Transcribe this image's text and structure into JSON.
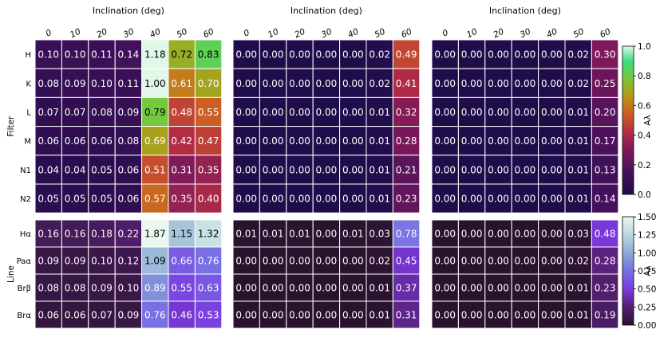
{
  "chart_data": [
    {
      "type": "heatmap",
      "panel": "top-left",
      "xlabel": "Inclination (deg)",
      "ylabel": "Filter",
      "x": [
        "0",
        "10",
        "20",
        "30",
        "40",
        "50",
        "60"
      ],
      "y": [
        "H",
        "K",
        "L",
        "M",
        "N1",
        "N2"
      ],
      "values": [
        [
          0.1,
          0.1,
          0.11,
          0.14,
          1.18,
          0.72,
          0.83
        ],
        [
          0.08,
          0.09,
          0.1,
          0.11,
          1.0,
          0.61,
          0.7
        ],
        [
          0.07,
          0.07,
          0.08,
          0.09,
          0.79,
          0.48,
          0.55
        ],
        [
          0.06,
          0.06,
          0.06,
          0.08,
          0.69,
          0.42,
          0.47
        ],
        [
          0.04,
          0.04,
          0.05,
          0.06,
          0.51,
          0.31,
          0.35
        ],
        [
          0.05,
          0.05,
          0.05,
          0.06,
          0.57,
          0.35,
          0.4
        ]
      ]
    },
    {
      "type": "heatmap",
      "panel": "top-middle",
      "xlabel": "Inclination (deg)",
      "x": [
        "0",
        "10",
        "20",
        "30",
        "40",
        "50",
        "60"
      ],
      "y": [
        "H",
        "K",
        "L",
        "M",
        "N1",
        "N2"
      ],
      "values": [
        [
          0.0,
          0.0,
          0.0,
          0.0,
          0.0,
          0.02,
          0.49
        ],
        [
          0.0,
          0.0,
          0.0,
          0.0,
          0.0,
          0.02,
          0.41
        ],
        [
          0.0,
          0.0,
          0.0,
          0.0,
          0.0,
          0.01,
          0.32
        ],
        [
          0.0,
          0.0,
          0.0,
          0.0,
          0.0,
          0.01,
          0.28
        ],
        [
          0.0,
          0.0,
          0.0,
          0.0,
          0.0,
          0.01,
          0.21
        ],
        [
          0.0,
          0.0,
          0.0,
          0.0,
          0.0,
          0.01,
          0.23
        ]
      ]
    },
    {
      "type": "heatmap",
      "panel": "top-right",
      "xlabel": "Inclination (deg)",
      "x": [
        "0",
        "10",
        "20",
        "30",
        "40",
        "50",
        "60"
      ],
      "y": [
        "H",
        "K",
        "L",
        "M",
        "N1",
        "N2"
      ],
      "values": [
        [
          0.0,
          0.0,
          0.0,
          0.0,
          0.0,
          0.02,
          0.3
        ],
        [
          0.0,
          0.0,
          0.0,
          0.0,
          0.0,
          0.02,
          0.25
        ],
        [
          0.0,
          0.0,
          0.0,
          0.0,
          0.0,
          0.01,
          0.2
        ],
        [
          0.0,
          0.0,
          0.0,
          0.0,
          0.0,
          0.01,
          0.17
        ],
        [
          0.0,
          0.0,
          0.0,
          0.0,
          0.0,
          0.01,
          0.13
        ],
        [
          0.0,
          0.0,
          0.0,
          0.0,
          0.0,
          0.01,
          0.14
        ]
      ]
    },
    {
      "type": "heatmap",
      "panel": "bottom-left",
      "ylabel": "Line",
      "x": [
        "0",
        "10",
        "20",
        "30",
        "40",
        "50",
        "60"
      ],
      "y": [
        "Hα",
        "Paα",
        "Brβ",
        "Brα"
      ],
      "values": [
        [
          0.16,
          0.16,
          0.18,
          0.22,
          1.87,
          1.15,
          1.32
        ],
        [
          0.09,
          0.09,
          0.1,
          0.12,
          1.09,
          0.66,
          0.76
        ],
        [
          0.08,
          0.08,
          0.09,
          0.1,
          0.89,
          0.55,
          0.63
        ],
        [
          0.06,
          0.06,
          0.07,
          0.09,
          0.76,
          0.46,
          0.53
        ]
      ]
    },
    {
      "type": "heatmap",
      "panel": "bottom-middle",
      "x": [
        "0",
        "10",
        "20",
        "30",
        "40",
        "50",
        "60"
      ],
      "y": [
        "Hα",
        "Paα",
        "Brβ",
        "Brα"
      ],
      "values": [
        [
          0.01,
          0.01,
          0.01,
          0.0,
          0.01,
          0.03,
          0.78
        ],
        [
          0.0,
          0.0,
          0.0,
          0.0,
          0.0,
          0.02,
          0.45
        ],
        [
          0.0,
          0.0,
          0.0,
          0.0,
          0.0,
          0.01,
          0.37
        ],
        [
          0.0,
          0.0,
          0.0,
          0.0,
          0.0,
          0.01,
          0.31
        ]
      ]
    },
    {
      "type": "heatmap",
      "panel": "bottom-right",
      "x": [
        "0",
        "10",
        "20",
        "30",
        "40",
        "50",
        "60"
      ],
      "y": [
        "Hα",
        "Paα",
        "Brβ",
        "Brα"
      ],
      "values": [
        [
          0.0,
          0.0,
          0.0,
          0.0,
          0.0,
          0.03,
          0.48
        ],
        [
          0.0,
          0.0,
          0.0,
          0.0,
          0.0,
          0.02,
          0.28
        ],
        [
          0.0,
          0.0,
          0.0,
          0.0,
          0.0,
          0.01,
          0.23
        ],
        [
          0.0,
          0.0,
          0.0,
          0.0,
          0.0,
          0.01,
          0.19
        ]
      ]
    }
  ],
  "colorbars": [
    {
      "label": "Aλ",
      "colormap": "viridis-like",
      "range": [
        0.0,
        1.0
      ],
      "ticks": [
        "0.0",
        "0.2",
        "0.4",
        "0.6",
        "0.8",
        "1.0"
      ]
    },
    {
      "label": "Aλ",
      "colormap": "purple-to-teal-white",
      "range": [
        0.0,
        1.5
      ],
      "ticks": [
        "0.00",
        "0.25",
        "0.50",
        "0.75",
        "1.00",
        "1.25",
        "1.50"
      ]
    }
  ]
}
